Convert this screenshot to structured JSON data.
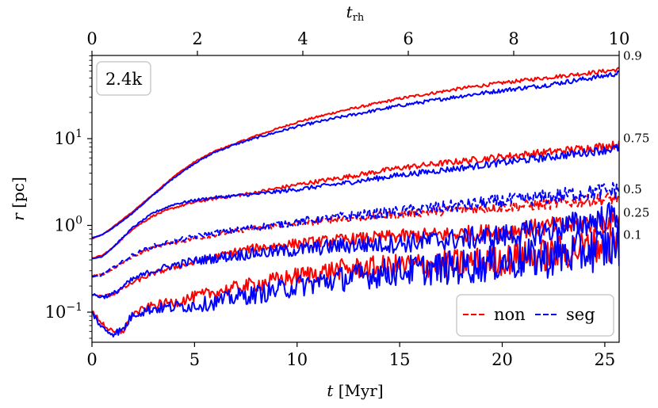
{
  "chart_data": {
    "type": "line",
    "title": "",
    "xlabel": "t [Myr]",
    "xlabel_italic": "t",
    "xlabel_rest": " [Myr]",
    "ylabel": "r [pc]",
    "ylabel_italic": "r",
    "ylabel_rest": " [pc]",
    "top_xlabel": "t_rh",
    "top_xlabel_main": "t",
    "top_xlabel_sub": "rh",
    "xlim": [
      0,
      25.7
    ],
    "ylim": [
      0.045,
      91
    ],
    "yscale": "log",
    "top_xlim": [
      0,
      10
    ],
    "xticks": [
      0,
      5,
      10,
      15,
      20,
      25
    ],
    "xtick_labels": [
      "0",
      "5",
      "10",
      "15",
      "20",
      "25"
    ],
    "top_xticks": [
      0,
      2,
      4,
      6,
      8,
      10
    ],
    "top_xtick_labels": [
      "0",
      "2",
      "4",
      "6",
      "8",
      "10"
    ],
    "yticks": [
      0.1,
      1,
      10
    ],
    "ytick_labels": [
      {
        "base": "10",
        "exp": "−1"
      },
      {
        "base": "10",
        "exp": "0"
      },
      {
        "base": "10",
        "exp": "1"
      }
    ],
    "grid": false,
    "annotation": "2.4k",
    "legend": {
      "placement": "lower-right",
      "entries": [
        {
          "label": "non",
          "color": "#ff0000",
          "style": "dashed"
        },
        {
          "label": "seg",
          "color": "#0000ff",
          "style": "dashed"
        }
      ]
    },
    "colors": {
      "non": "#ff0000",
      "seg": "#0000ff"
    },
    "series": [
      {
        "name": "non 0.9",
        "group": "non",
        "fraction": "0.9",
        "style": "solid",
        "noise": 0.01,
        "t": [
          0,
          0.5,
          1,
          2,
          3,
          4,
          5,
          6,
          7,
          8,
          10,
          12,
          15,
          18,
          20,
          22,
          25,
          25.7
        ],
        "r": [
          0.7,
          0.78,
          0.95,
          1.45,
          2.3,
          3.7,
          5.4,
          7.2,
          8.8,
          10.8,
          15.5,
          20.5,
          29,
          38,
          44,
          50,
          60,
          63
        ]
      },
      {
        "name": "seg 0.9",
        "group": "seg",
        "fraction": "0.9",
        "style": "solid",
        "noise": 0.012,
        "t": [
          0,
          0.5,
          1,
          2,
          3,
          4,
          5,
          6,
          7,
          8,
          10,
          12,
          15,
          18,
          20,
          22,
          25,
          25.7
        ],
        "r": [
          0.72,
          0.78,
          0.92,
          1.4,
          2.25,
          3.55,
          5.2,
          7.0,
          8.6,
          10.2,
          13.8,
          17.5,
          24,
          31,
          36,
          41,
          53,
          57
        ]
      },
      {
        "name": "non 0.75",
        "group": "non",
        "fraction": "0.75",
        "style": "solid",
        "noise": 0.02,
        "t": [
          0,
          0.5,
          1,
          2,
          3,
          4,
          5,
          6,
          7,
          8,
          10,
          12,
          15,
          18,
          20,
          22,
          25,
          25.7
        ],
        "r": [
          0.42,
          0.45,
          0.55,
          0.92,
          1.3,
          1.6,
          1.85,
          2.05,
          2.2,
          2.4,
          2.95,
          3.5,
          4.6,
          5.5,
          6.2,
          6.9,
          8.2,
          8.6
        ]
      },
      {
        "name": "seg 0.75",
        "group": "seg",
        "fraction": "0.75",
        "style": "solid",
        "noise": 0.02,
        "t": [
          0,
          0.5,
          1,
          2,
          3,
          4,
          5,
          6,
          7,
          8,
          10,
          12,
          15,
          18,
          20,
          22,
          25,
          25.7
        ],
        "r": [
          0.41,
          0.44,
          0.55,
          0.95,
          1.4,
          1.75,
          1.95,
          2.1,
          2.2,
          2.3,
          2.6,
          3.0,
          3.8,
          4.6,
          5.3,
          6.0,
          7.4,
          7.8
        ]
      },
      {
        "name": "non 0.5",
        "group": "non",
        "fraction": "0.5",
        "style": "dashed",
        "noise": 0.03,
        "t": [
          0,
          0.5,
          1,
          2,
          3,
          4,
          5,
          6,
          7,
          8,
          10,
          12,
          15,
          18,
          20,
          22,
          25,
          25.7
        ],
        "r": [
          0.26,
          0.27,
          0.31,
          0.44,
          0.56,
          0.63,
          0.7,
          0.78,
          0.86,
          0.93,
          1.05,
          1.18,
          1.35,
          1.52,
          1.62,
          1.75,
          2.0,
          2.1
        ]
      },
      {
        "name": "seg 0.5",
        "group": "seg",
        "fraction": "0.5",
        "style": "dashed",
        "noise": 0.04,
        "t": [
          0,
          0.5,
          1,
          2,
          3,
          4,
          5,
          6,
          7,
          8,
          10,
          12,
          15,
          18,
          20,
          22,
          25,
          25.7
        ],
        "r": [
          0.25,
          0.27,
          0.32,
          0.46,
          0.58,
          0.66,
          0.74,
          0.82,
          0.88,
          0.95,
          1.1,
          1.25,
          1.45,
          1.7,
          1.9,
          2.1,
          2.5,
          2.6
        ]
      },
      {
        "name": "non 0.25",
        "group": "non",
        "fraction": "0.25",
        "style": "solid",
        "noise": 0.05,
        "t": [
          0,
          0.5,
          1,
          2,
          3,
          4,
          5,
          6,
          7,
          8,
          10,
          12,
          15,
          18,
          20,
          22,
          25,
          25.7
        ],
        "r": [
          0.16,
          0.15,
          0.16,
          0.22,
          0.28,
          0.33,
          0.37,
          0.43,
          0.5,
          0.55,
          0.62,
          0.68,
          0.75,
          0.8,
          0.85,
          0.95,
          1.1,
          1.15
        ]
      },
      {
        "name": "seg 0.25",
        "group": "seg",
        "fraction": "0.25",
        "style": "solid",
        "noise": 0.07,
        "t": [
          0,
          0.5,
          1,
          2,
          3,
          4,
          5,
          6,
          7,
          8,
          10,
          12,
          15,
          18,
          20,
          22,
          25,
          25.7
        ],
        "r": [
          0.16,
          0.15,
          0.16,
          0.24,
          0.3,
          0.35,
          0.39,
          0.42,
          0.45,
          0.48,
          0.52,
          0.58,
          0.62,
          0.7,
          0.75,
          0.85,
          1.2,
          1.4
        ]
      },
      {
        "name": "non 0.1",
        "group": "non",
        "fraction": "0.1",
        "style": "solid",
        "noise": 0.09,
        "t": [
          0,
          0.5,
          1,
          1.5,
          2,
          3,
          4,
          5,
          6,
          7,
          8,
          10,
          12,
          15,
          18,
          20,
          22,
          25,
          25.7
        ],
        "r": [
          0.1,
          0.075,
          0.058,
          0.06,
          0.095,
          0.12,
          0.13,
          0.15,
          0.17,
          0.19,
          0.21,
          0.26,
          0.31,
          0.34,
          0.37,
          0.4,
          0.45,
          0.6,
          0.65
        ]
      },
      {
        "name": "seg 0.1",
        "group": "seg",
        "fraction": "0.1",
        "style": "solid",
        "noise": 0.11,
        "t": [
          0,
          0.5,
          1,
          1.5,
          2,
          3,
          4,
          5,
          6,
          7,
          8,
          10,
          12,
          15,
          18,
          20,
          22,
          25,
          25.7
        ],
        "r": [
          0.1,
          0.065,
          0.057,
          0.062,
          0.095,
          0.11,
          0.115,
          0.12,
          0.13,
          0.15,
          0.16,
          0.2,
          0.24,
          0.3,
          0.33,
          0.38,
          0.42,
          0.55,
          0.6
        ]
      }
    ],
    "fraction_labels": [
      {
        "text": "0.9",
        "r": 90
      },
      {
        "text": "0.75",
        "r": 10.1
      },
      {
        "text": "0.5",
        "r": 2.6
      },
      {
        "text": "0.25",
        "r": 1.4
      },
      {
        "text": "0.1",
        "r": 0.78
      }
    ]
  }
}
